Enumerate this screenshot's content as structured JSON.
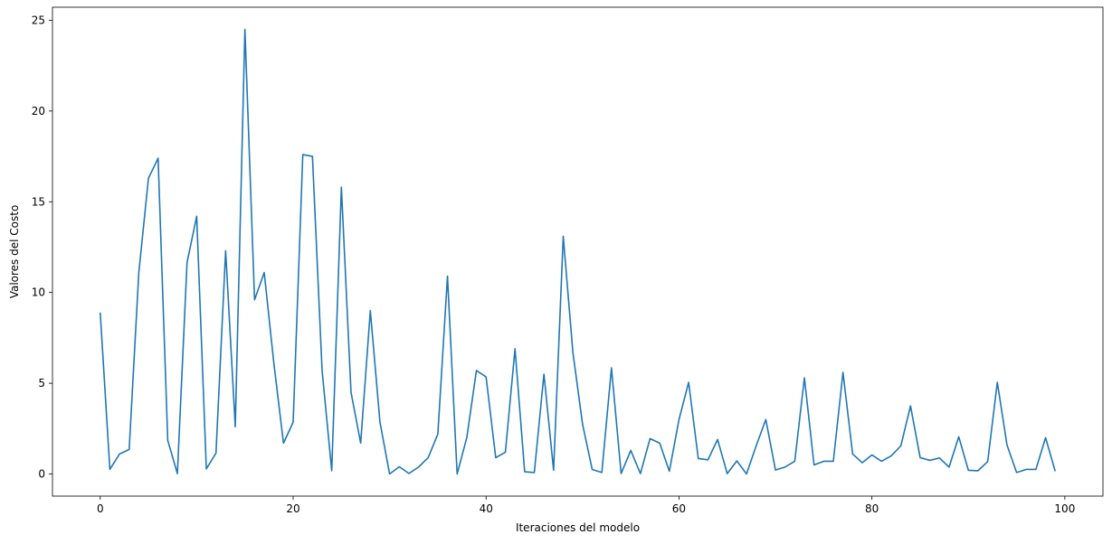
{
  "chart_data": {
    "type": "line",
    "title": "",
    "xlabel": "Iteraciones del modelo",
    "ylabel": "Valores del Costo",
    "xlim": [
      -4.95,
      103.95
    ],
    "ylim": [
      -1.22,
      25.72
    ],
    "xticks": [
      0,
      20,
      40,
      60,
      80,
      100
    ],
    "yticks": [
      0,
      5,
      10,
      15,
      20,
      25
    ],
    "grid": false,
    "legend": "none",
    "series": [
      {
        "color": "#1f77b4",
        "x": [
          0,
          1,
          2,
          3,
          4,
          5,
          6,
          7,
          8,
          9,
          10,
          11,
          12,
          13,
          14,
          15,
          16,
          17,
          18,
          19,
          20,
          21,
          22,
          23,
          24,
          25,
          26,
          27,
          28,
          29,
          30,
          31,
          32,
          33,
          34,
          35,
          36,
          37,
          38,
          39,
          40,
          41,
          42,
          43,
          44,
          45,
          46,
          47,
          48,
          49,
          50,
          51,
          52,
          53,
          54,
          55,
          56,
          57,
          58,
          59,
          60,
          61,
          62,
          63,
          64,
          65,
          66,
          67,
          68,
          69,
          70,
          71,
          72,
          73,
          74,
          75,
          76,
          77,
          78,
          79,
          80,
          81,
          82,
          83,
          84,
          85,
          86,
          87,
          88,
          89,
          90,
          91,
          92,
          93,
          94,
          95,
          96,
          97,
          98,
          99
        ],
        "values": [
          8.9,
          0.25,
          1.1,
          1.35,
          11.1,
          16.3,
          17.4,
          1.85,
          0.02,
          11.65,
          14.2,
          0.28,
          1.15,
          12.3,
          2.6,
          24.5,
          9.6,
          11.1,
          6.1,
          1.7,
          2.85,
          17.6,
          17.5,
          5.7,
          0.18,
          15.8,
          4.5,
          1.7,
          9.0,
          2.85,
          0.0,
          0.4,
          0.03,
          0.38,
          0.9,
          2.2,
          10.9,
          0.0,
          2.0,
          5.7,
          5.35,
          0.9,
          1.2,
          6.9,
          0.12,
          0.08,
          5.5,
          0.2,
          13.1,
          6.7,
          2.75,
          0.25,
          0.08,
          5.85,
          0.02,
          1.3,
          0.02,
          1.95,
          1.7,
          0.15,
          3.0,
          5.05,
          0.85,
          0.78,
          1.9,
          0.02,
          0.72,
          0.0,
          1.55,
          3.0,
          0.22,
          0.38,
          0.7,
          5.3,
          0.5,
          0.7,
          0.7,
          5.6,
          1.1,
          0.62,
          1.05,
          0.7,
          1.0,
          1.55,
          3.75,
          0.9,
          0.75,
          0.88,
          0.38,
          2.05,
          0.2,
          0.18,
          0.68,
          5.05,
          1.6,
          0.08,
          0.25,
          0.25,
          2.0,
          0.15
        ]
      }
    ]
  }
}
